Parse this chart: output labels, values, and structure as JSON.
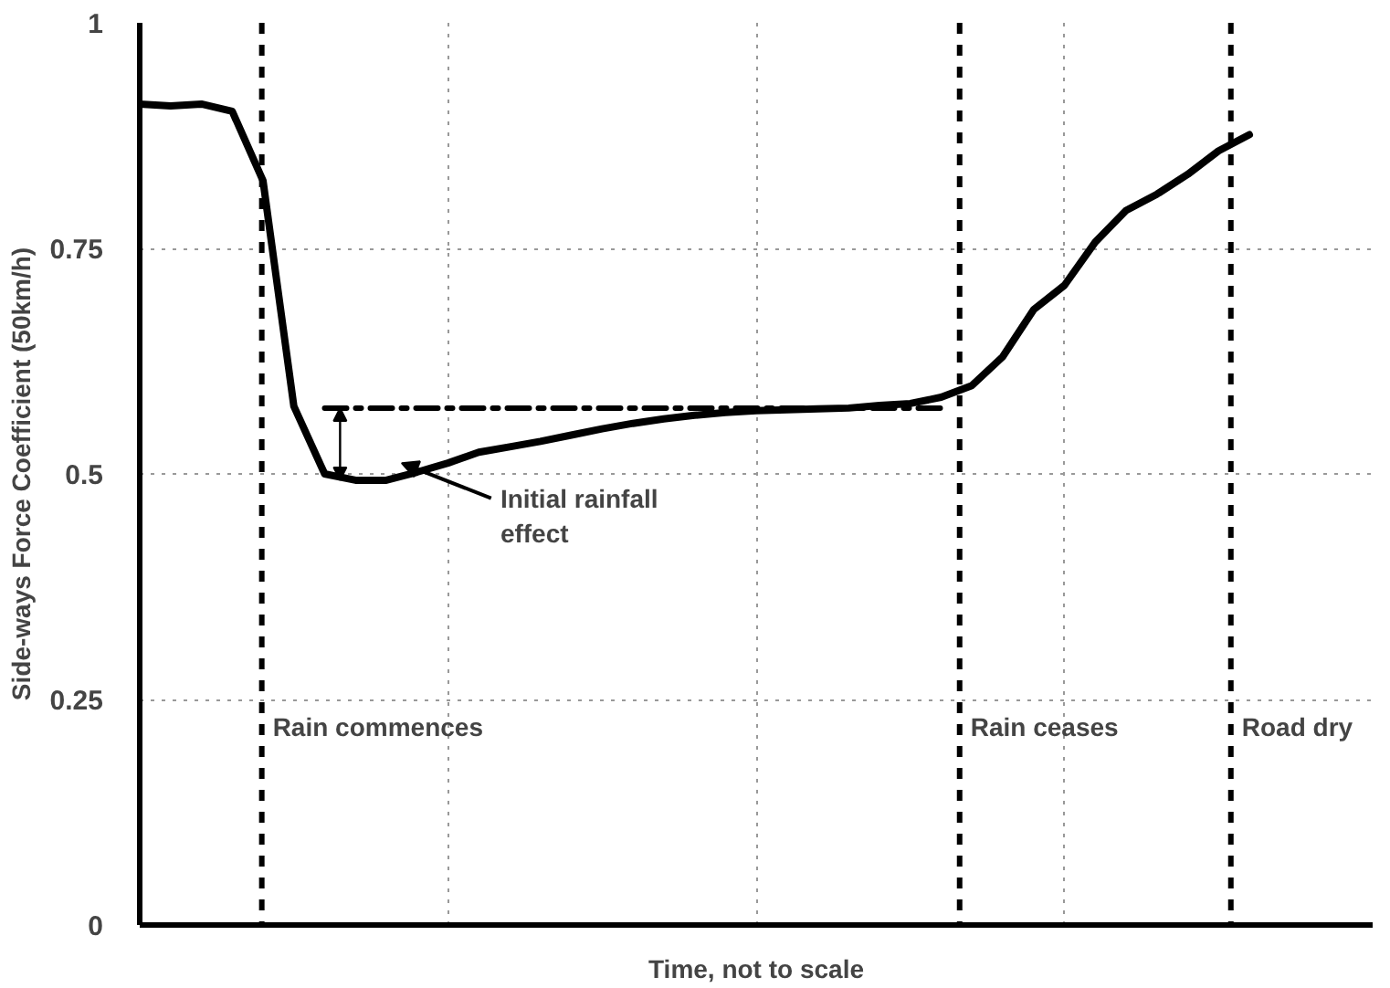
{
  "chart_data": {
    "type": "line",
    "xlabel": "Time, not to scale",
    "ylabel": "Side-ways Force Coefficient (50km/h)",
    "ylim": [
      0,
      1
    ],
    "yticks": [
      0,
      0.25,
      0.5,
      0.75,
      1
    ],
    "categories": [
      null,
      null,
      null,
      null,
      null,
      null,
      null,
      null,
      null,
      null,
      null,
      null,
      null,
      null,
      null,
      null,
      null,
      null,
      null,
      null,
      null,
      null,
      null,
      null,
      null,
      null,
      null,
      null,
      null,
      null,
      null,
      null,
      null,
      null,
      null,
      null,
      null,
      null,
      null,
      null,
      null
    ],
    "grid": true,
    "marker": "none",
    "series": [
      {
        "color": "#000000",
        "line_style": "solid",
        "values": [
          0.91,
          0.908,
          0.91,
          0.902,
          0.825,
          0.575,
          0.5,
          0.493,
          0.493,
          0.502,
          0.512,
          0.524,
          0.53,
          0.536,
          0.543,
          0.55,
          0.556,
          0.561,
          0.565,
          0.568,
          0.57,
          0.571,
          0.572,
          0.573,
          0.576,
          0.578,
          0.585,
          0.598,
          0.63,
          0.682,
          0.709,
          0.757,
          0.792,
          0.81,
          0.832,
          0.858,
          0.876,
          null,
          null,
          null,
          null
        ]
      },
      {
        "color": "#000000",
        "line_style": "dashed",
        "values": [
          null,
          null,
          null,
          null,
          null,
          null,
          0.573,
          0.573,
          0.573,
          0.573,
          0.573,
          0.573,
          0.573,
          0.573,
          0.573,
          0.573,
          0.573,
          0.573,
          0.573,
          0.573,
          0.573,
          0.573,
          0.573,
          0.573,
          0.573,
          0.573,
          0.573,
          null,
          null,
          null,
          null,
          null,
          null,
          null,
          null,
          null,
          null,
          null,
          null,
          null,
          null
        ]
      }
    ],
    "annotations": [
      "Initial rainfall\neffect",
      "Rain commences",
      "Rain ceases",
      "Road dry"
    ]
  }
}
